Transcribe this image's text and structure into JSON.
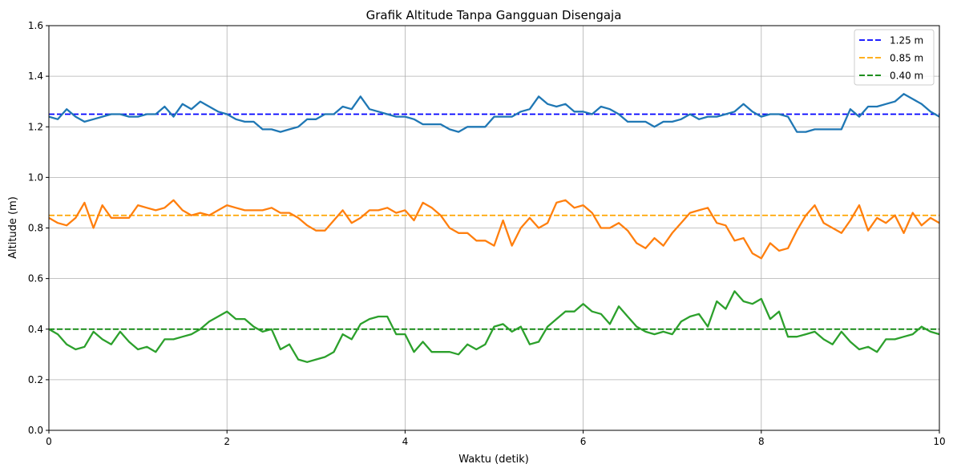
{
  "chart_data": {
    "type": "line",
    "title": "Grafik Altitude Tanpa Gangguan Disengaja",
    "xlabel": "Waktu (detik)",
    "ylabel": "Altitude (m)",
    "xlim": [
      0,
      10
    ],
    "ylim": [
      0,
      1.6
    ],
    "xticks": [
      "0",
      "2",
      "4",
      "6",
      "8",
      "10"
    ],
    "yticks": [
      "0.0",
      "0.2",
      "0.4",
      "0.6",
      "0.8",
      "1.0",
      "1.2",
      "1.4",
      "1.6"
    ],
    "grid": true,
    "legend_position": "top-right",
    "x_step": 0.1,
    "series": [
      {
        "color": "#1f77b4",
        "values": [
          1.24,
          1.23,
          1.27,
          1.24,
          1.22,
          1.23,
          1.24,
          1.25,
          1.25,
          1.24,
          1.24,
          1.25,
          1.25,
          1.28,
          1.24,
          1.29,
          1.27,
          1.3,
          1.28,
          1.26,
          1.25,
          1.23,
          1.22,
          1.22,
          1.19,
          1.19,
          1.18,
          1.19,
          1.2,
          1.23,
          1.23,
          1.25,
          1.25,
          1.28,
          1.27,
          1.32,
          1.27,
          1.26,
          1.25,
          1.24,
          1.24,
          1.23,
          1.21,
          1.21,
          1.21,
          1.19,
          1.18,
          1.2,
          1.2,
          1.2,
          1.24,
          1.24,
          1.24,
          1.26,
          1.27,
          1.32,
          1.29,
          1.28,
          1.29,
          1.26,
          1.26,
          1.25,
          1.28,
          1.27,
          1.25,
          1.22,
          1.22,
          1.22,
          1.2,
          1.22,
          1.22,
          1.23,
          1.25,
          1.23,
          1.24,
          1.24,
          1.25,
          1.26,
          1.29,
          1.26,
          1.24,
          1.25,
          1.25,
          1.24,
          1.18,
          1.18,
          1.19,
          1.19,
          1.19,
          1.19,
          1.27,
          1.24,
          1.28,
          1.28,
          1.29,
          1.3,
          1.33,
          1.31,
          1.29,
          1.26,
          1.24
        ]
      },
      {
        "color": "#ff7f0e",
        "values": [
          0.84,
          0.82,
          0.81,
          0.84,
          0.9,
          0.8,
          0.89,
          0.84,
          0.84,
          0.84,
          0.89,
          0.88,
          0.87,
          0.88,
          0.91,
          0.87,
          0.85,
          0.86,
          0.85,
          0.87,
          0.89,
          0.88,
          0.87,
          0.87,
          0.87,
          0.88,
          0.86,
          0.86,
          0.84,
          0.81,
          0.79,
          0.79,
          0.83,
          0.87,
          0.82,
          0.84,
          0.87,
          0.87,
          0.88,
          0.86,
          0.87,
          0.83,
          0.9,
          0.88,
          0.85,
          0.8,
          0.78,
          0.78,
          0.75,
          0.75,
          0.73,
          0.83,
          0.73,
          0.8,
          0.84,
          0.8,
          0.82,
          0.9,
          0.91,
          0.88,
          0.89,
          0.86,
          0.8,
          0.8,
          0.82,
          0.79,
          0.74,
          0.72,
          0.76,
          0.73,
          0.78,
          0.82,
          0.86,
          0.87,
          0.88,
          0.82,
          0.81,
          0.75,
          0.76,
          0.7,
          0.68,
          0.74,
          0.71,
          0.72,
          0.79,
          0.85,
          0.89,
          0.82,
          0.8,
          0.78,
          0.83,
          0.89,
          0.79,
          0.84,
          0.82,
          0.85,
          0.78,
          0.86,
          0.81,
          0.84,
          0.82
        ]
      },
      {
        "color": "#2ca02c",
        "values": [
          0.4,
          0.38,
          0.34,
          0.32,
          0.33,
          0.39,
          0.36,
          0.34,
          0.39,
          0.35,
          0.32,
          0.33,
          0.31,
          0.36,
          0.36,
          0.37,
          0.38,
          0.4,
          0.43,
          0.45,
          0.47,
          0.44,
          0.44,
          0.41,
          0.39,
          0.4,
          0.32,
          0.34,
          0.28,
          0.27,
          0.28,
          0.29,
          0.31,
          0.38,
          0.36,
          0.42,
          0.44,
          0.45,
          0.45,
          0.38,
          0.38,
          0.31,
          0.35,
          0.31,
          0.31,
          0.31,
          0.3,
          0.34,
          0.32,
          0.34,
          0.41,
          0.42,
          0.39,
          0.41,
          0.34,
          0.35,
          0.41,
          0.44,
          0.47,
          0.47,
          0.5,
          0.47,
          0.46,
          0.42,
          0.49,
          0.45,
          0.41,
          0.39,
          0.38,
          0.39,
          0.38,
          0.43,
          0.45,
          0.46,
          0.41,
          0.51,
          0.48,
          0.55,
          0.51,
          0.5,
          0.52,
          0.44,
          0.47,
          0.37,
          0.37,
          0.38,
          0.39,
          0.36,
          0.34,
          0.39,
          0.35,
          0.32,
          0.33,
          0.31,
          0.36,
          0.36,
          0.37,
          0.38,
          0.41,
          0.39,
          0.38
        ]
      }
    ],
    "reference_lines": [
      {
        "name": "1.25 m",
        "value": 1.25,
        "color": "#0000ff",
        "style": "dashed"
      },
      {
        "name": "0.85 m",
        "value": 0.85,
        "color": "#ffa500",
        "style": "dashed"
      },
      {
        "name": "0.40 m",
        "value": 0.4,
        "color": "#008000",
        "style": "dashed"
      }
    ]
  }
}
